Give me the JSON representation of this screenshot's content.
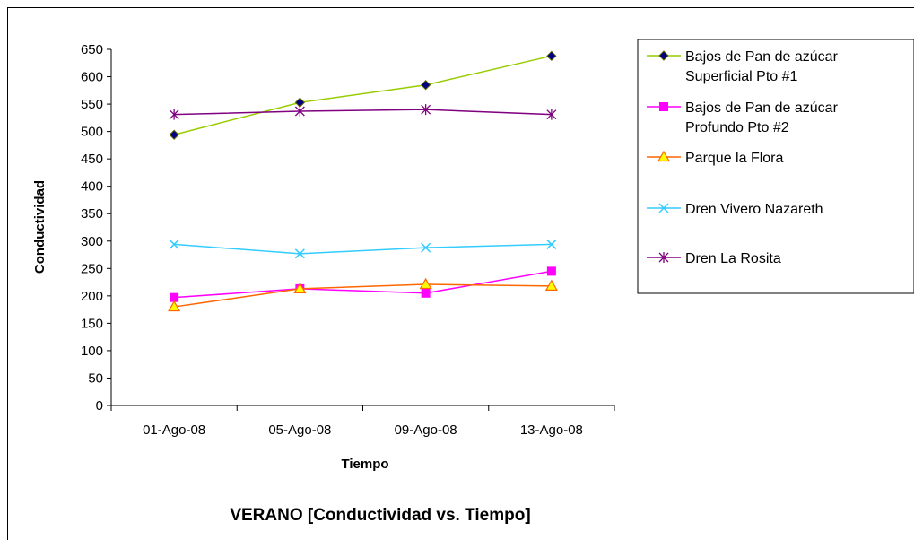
{
  "chart_data": {
    "type": "line",
    "title": "VERANO [Conductividad vs. Tiempo]",
    "xlabel": "Tiempo",
    "ylabel": "Conductividad",
    "categories": [
      "01-Ago-08",
      "05-Ago-08",
      "09-Ago-08",
      "13-Ago-08"
    ],
    "ylim": [
      0,
      650
    ],
    "yticks": [
      0,
      50,
      100,
      150,
      200,
      250,
      300,
      350,
      400,
      450,
      500,
      550,
      600,
      650
    ],
    "grid": false,
    "legend_position": "right",
    "series": [
      {
        "name": "Bajos de Pan de azúcar Superficial Pto #1",
        "name_lines": [
          "Bajos de Pan de azúcar",
          "Superficial Pto #1"
        ],
        "values": [
          494,
          553,
          585,
          638
        ],
        "color": "#99CC00",
        "marker": "diamond",
        "marker_fill": "#000080"
      },
      {
        "name": "Bajos de Pan de azúcar Profundo Pto #2",
        "name_lines": [
          "Bajos de Pan de azúcar",
          "Profundo Pto #2"
        ],
        "values": [
          197,
          213,
          205,
          245
        ],
        "color": "#FF00FF",
        "marker": "square",
        "marker_fill": "#FF00FF"
      },
      {
        "name": "Parque la Flora",
        "name_lines": [
          "Parque la Flora"
        ],
        "values": [
          180,
          213,
          221,
          218
        ],
        "color": "#FF6600",
        "marker": "triangle",
        "marker_fill": "#FFFF00"
      },
      {
        "name": "Dren Vivero Nazareth",
        "name_lines": [
          "Dren Vivero Nazareth"
        ],
        "values": [
          294,
          277,
          288,
          294
        ],
        "color": "#33CCFF",
        "marker": "x",
        "marker_fill": "none"
      },
      {
        "name": "Dren La Rosita",
        "name_lines": [
          "Dren La Rosita"
        ],
        "values": [
          531,
          537,
          540,
          531
        ],
        "color": "#800080",
        "marker": "star",
        "marker_fill": "none"
      }
    ]
  }
}
